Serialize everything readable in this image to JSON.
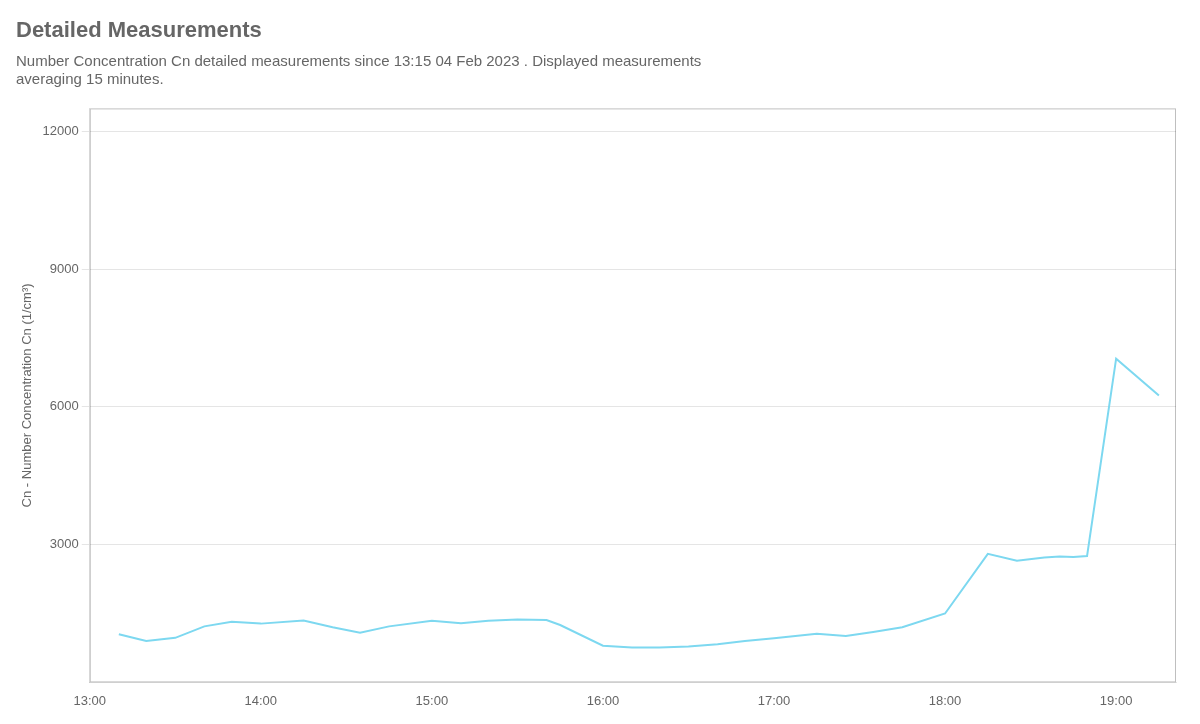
{
  "chart_data": {
    "type": "line",
    "title": "Detailed Measurements",
    "subtitle": "Number Concentration Cn detailed measurements since 13:15 04 Feb 2023 . Displayed measurements\naveraging 15 minutes.",
    "ylabel": "Cn - Number Concentration Cn (1/cm³)",
    "x": [
      13.17,
      13.33,
      13.5,
      13.67,
      13.83,
      14.0,
      14.25,
      14.42,
      14.58,
      14.75,
      15.0,
      15.17,
      15.33,
      15.5,
      15.67,
      15.75,
      16.0,
      16.17,
      16.33,
      16.5,
      16.67,
      16.83,
      17.0,
      17.25,
      17.42,
      17.58,
      17.75,
      18.0,
      18.25,
      18.42,
      18.58,
      18.67,
      18.75,
      18.83,
      19.0,
      19.25
    ],
    "values": [
      1050,
      900,
      970,
      1220,
      1320,
      1280,
      1350,
      1200,
      1080,
      1220,
      1340,
      1290,
      1340,
      1370,
      1360,
      1250,
      800,
      760,
      760,
      780,
      830,
      900,
      960,
      1060,
      1010,
      1100,
      1200,
      1500,
      2800,
      2650,
      2720,
      2740,
      2730,
      2750,
      7050,
      6250
    ],
    "color": "#7dd8f0",
    "xlim": [
      13.0,
      19.35
    ],
    "ylim": [
      0,
      12500
    ],
    "xticks": [
      {
        "value": 13,
        "label": "13:00"
      },
      {
        "value": 14,
        "label": "14:00"
      },
      {
        "value": 15,
        "label": "15:00"
      },
      {
        "value": 16,
        "label": "16:00"
      },
      {
        "value": 17,
        "label": "17:00"
      },
      {
        "value": 18,
        "label": "18:00"
      },
      {
        "value": 19,
        "label": "19:00"
      }
    ],
    "yticks": [
      3000,
      6000,
      9000,
      12000
    ],
    "grid": true
  }
}
